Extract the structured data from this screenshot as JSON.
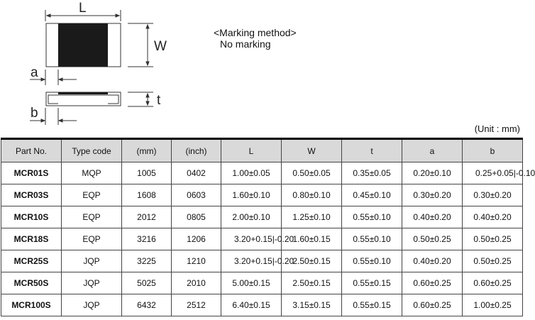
{
  "diagram": {
    "labels": {
      "L": "L",
      "W": "W",
      "a": "a",
      "b": "b",
      "t": "t"
    }
  },
  "marking": {
    "title": "<Marking method>",
    "value": "No marking"
  },
  "unit": "(Unit : mm)",
  "table": {
    "headers": [
      "Part No.",
      "Type code",
      "(mm)",
      "(inch)",
      "L",
      "W",
      "t",
      "a",
      "b"
    ],
    "rows": [
      [
        "MCR01S",
        "MQP",
        "1005",
        "0402",
        "1.00±0.05",
        "0.50±0.05",
        "0.35±0.05",
        "0.20±0.10",
        "0.25+0.05|-0.10"
      ],
      [
        "MCR03S",
        "EQP",
        "1608",
        "0603",
        "1.60±0.10",
        "0.80±0.10",
        "0.45±0.10",
        "0.30±0.20",
        "0.30±0.20"
      ],
      [
        "MCR10S",
        "EQP",
        "2012",
        "0805",
        "2.00±0.10",
        "1.25±0.10",
        "0.55±0.10",
        "0.40±0.20",
        "0.40±0.20"
      ],
      [
        "MCR18S",
        "EQP",
        "3216",
        "1206",
        "3.20+0.15|-0.20",
        "1.60±0.15",
        "0.55±0.10",
        "0.50±0.25",
        "0.50±0.25"
      ],
      [
        "MCR25S",
        "JQP",
        "3225",
        "1210",
        "3.20+0.15|-0.20",
        "2.50±0.15",
        "0.55±0.10",
        "0.40±0.20",
        "0.50±0.25"
      ],
      [
        "MCR50S",
        "JQP",
        "5025",
        "2010",
        "5.00±0.15",
        "2.50±0.15",
        "0.55±0.15",
        "0.60±0.25",
        "0.60±0.25"
      ],
      [
        "MCR100S",
        "JQP",
        "6432",
        "2512",
        "6.40±0.15",
        "3.15±0.15",
        "0.55±0.15",
        "0.60±0.25",
        "1.00±0.25"
      ]
    ]
  }
}
